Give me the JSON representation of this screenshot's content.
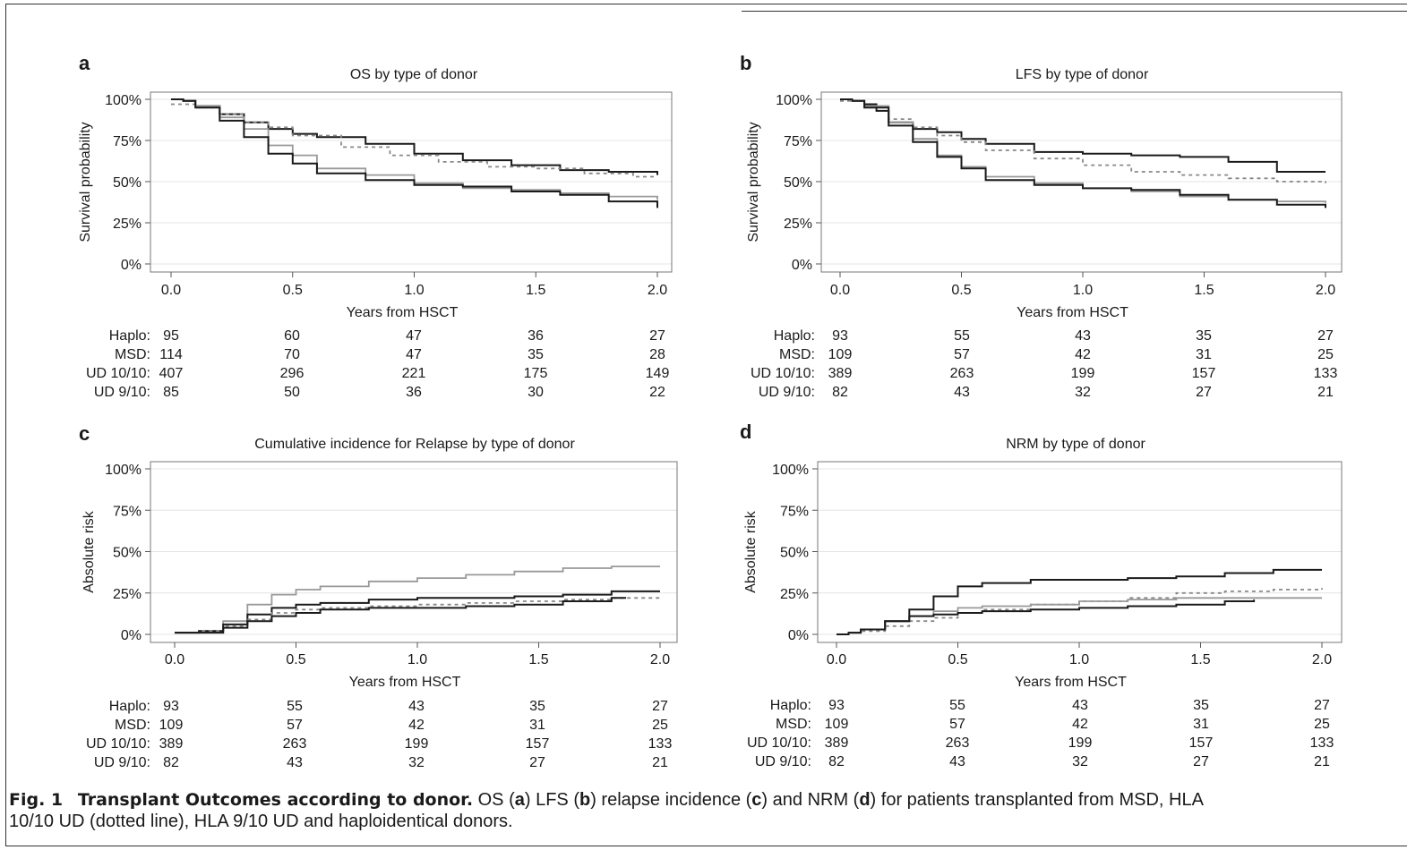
{
  "caption": {
    "fig_label": "Fig. 1",
    "bold_title": "Transplant Outcomes according to donor.",
    "parts": [
      {
        "text": " OS (",
        "bold": false
      },
      {
        "text": "a",
        "bold": true
      },
      {
        "text": ") LFS (",
        "bold": false
      },
      {
        "text": "b",
        "bold": true
      },
      {
        "text": ") relapse incidence (",
        "bold": false
      },
      {
        "text": "c",
        "bold": true
      },
      {
        "text": ") and NRM (",
        "bold": false
      },
      {
        "text": "d",
        "bold": true
      },
      {
        "text": ") for patients transplanted from MSD, HLA",
        "bold": false
      }
    ],
    "line2": "10/10 UD (dotted line), HLA 9/10 UD and haploidentical donors."
  },
  "chart_data": [
    {
      "panel": "a",
      "type": "line",
      "title": "OS by type of donor",
      "xlabel": "Years from HSCT",
      "ylabel": "Survival probability",
      "xlim": [
        0,
        2
      ],
      "ylim": [
        0,
        1
      ],
      "x_ticks": [
        "0.0",
        "0.5",
        "1.0",
        "1.5",
        "2.0"
      ],
      "y_ticks": [
        "0%",
        "25%",
        "50%",
        "75%",
        "100%"
      ],
      "grid": true,
      "series": [
        {
          "color": "#1a1a1a",
          "style": "solid",
          "x": [
            0,
            0.05,
            0.1,
            0.2,
            0.3,
            0.4,
            0.5,
            0.6,
            0.8,
            1.0,
            1.2,
            1.4,
            1.6,
            1.8,
            2.0
          ],
          "y": [
            1,
            0.99,
            0.96,
            0.91,
            0.86,
            0.82,
            0.79,
            0.77,
            0.73,
            0.67,
            0.63,
            0.6,
            0.57,
            0.56,
            0.54
          ]
        },
        {
          "color": "#888888",
          "style": "dashed",
          "x": [
            0,
            0.05,
            0.1,
            0.2,
            0.3,
            0.4,
            0.5,
            0.7,
            0.9,
            1.1,
            1.3,
            1.5,
            1.7,
            1.9,
            2.0
          ],
          "y": [
            0.97,
            0.97,
            0.95,
            0.91,
            0.86,
            0.83,
            0.78,
            0.71,
            0.66,
            0.62,
            0.59,
            0.58,
            0.55,
            0.53,
            0.53
          ]
        },
        {
          "color": "#999999",
          "style": "solid",
          "x": [
            0,
            0.05,
            0.1,
            0.2,
            0.3,
            0.4,
            0.5,
            0.6,
            0.8,
            1.0,
            1.2,
            1.4,
            1.6,
            1.8,
            2.0
          ],
          "y": [
            1,
            0.99,
            0.96,
            0.89,
            0.82,
            0.72,
            0.66,
            0.58,
            0.54,
            0.49,
            0.46,
            0.45,
            0.43,
            0.41,
            0.39
          ]
        },
        {
          "color": "#1a1a1a",
          "style": "solid",
          "x": [
            0,
            0.05,
            0.1,
            0.2,
            0.3,
            0.4,
            0.5,
            0.6,
            0.8,
            1.0,
            1.2,
            1.4,
            1.6,
            1.8,
            2.0
          ],
          "y": [
            1,
            0.99,
            0.95,
            0.87,
            0.77,
            0.67,
            0.61,
            0.55,
            0.51,
            0.48,
            0.47,
            0.44,
            0.42,
            0.38,
            0.34
          ]
        }
      ],
      "risk_table": {
        "rows": [
          {
            "label": "Haplo:",
            "values": [
              "95",
              "60",
              "47",
              "36",
              "27"
            ]
          },
          {
            "label": "MSD:",
            "values": [
              "114",
              "70",
              "47",
              "35",
              "28"
            ]
          },
          {
            "label": "UD 10/10:",
            "values": [
              "407",
              "296",
              "221",
              "175",
              "149"
            ]
          },
          {
            "label": "UD 9/10:",
            "values": [
              "85",
              "50",
              "36",
              "30",
              "22"
            ]
          }
        ]
      }
    },
    {
      "panel": "b",
      "type": "line",
      "title": "LFS by type of donor",
      "xlabel": "Years from HSCT",
      "ylabel": "Survival probability",
      "xlim": [
        0,
        2
      ],
      "ylim": [
        0,
        1
      ],
      "x_ticks": [
        "0.0",
        "0.5",
        "1.0",
        "1.5",
        "2.0"
      ],
      "y_ticks": [
        "0%",
        "25%",
        "50%",
        "75%",
        "100%"
      ],
      "grid": true,
      "series": [
        {
          "color": "#1a1a1a",
          "style": "solid",
          "x": [
            0,
            0.05,
            0.1,
            0.15,
            0.2,
            0.3,
            0.4,
            0.5,
            0.6,
            0.8,
            1.0,
            1.2,
            1.4,
            1.6,
            1.8,
            2.0
          ],
          "y": [
            1,
            0.99,
            0.97,
            0.93,
            0.86,
            0.82,
            0.8,
            0.76,
            0.73,
            0.68,
            0.67,
            0.66,
            0.65,
            0.62,
            0.56,
            0.56
          ]
        },
        {
          "color": "#888888",
          "style": "dashed",
          "x": [
            0,
            0.05,
            0.1,
            0.2,
            0.3,
            0.4,
            0.5,
            0.6,
            0.8,
            1.0,
            1.2,
            1.4,
            1.6,
            1.8,
            2.0
          ],
          "y": [
            0.99,
            0.99,
            0.96,
            0.88,
            0.83,
            0.78,
            0.74,
            0.69,
            0.64,
            0.6,
            0.56,
            0.54,
            0.52,
            0.5,
            0.49
          ]
        },
        {
          "color": "#999999",
          "style": "solid",
          "x": [
            0,
            0.05,
            0.1,
            0.2,
            0.3,
            0.4,
            0.5,
            0.6,
            0.8,
            1.0,
            1.2,
            1.4,
            1.6,
            1.8,
            2.0
          ],
          "y": [
            1,
            0.99,
            0.96,
            0.86,
            0.76,
            0.66,
            0.59,
            0.53,
            0.49,
            0.46,
            0.44,
            0.41,
            0.39,
            0.38,
            0.37
          ]
        },
        {
          "color": "#1a1a1a",
          "style": "solid",
          "x": [
            0,
            0.05,
            0.1,
            0.2,
            0.3,
            0.4,
            0.5,
            0.6,
            0.8,
            1.0,
            1.2,
            1.4,
            1.6,
            1.8,
            2.0
          ],
          "y": [
            1,
            0.99,
            0.95,
            0.84,
            0.74,
            0.65,
            0.58,
            0.51,
            0.48,
            0.46,
            0.45,
            0.42,
            0.39,
            0.36,
            0.34
          ]
        }
      ],
      "risk_table": {
        "rows": [
          {
            "label": "Haplo:",
            "values": [
              "93",
              "55",
              "43",
              "35",
              "27"
            ]
          },
          {
            "label": "MSD:",
            "values": [
              "109",
              "57",
              "42",
              "31",
              "25"
            ]
          },
          {
            "label": "UD 10/10:",
            "values": [
              "389",
              "263",
              "199",
              "157",
              "133"
            ]
          },
          {
            "label": "UD 9/10:",
            "values": [
              "82",
              "43",
              "32",
              "27",
              "21"
            ]
          }
        ]
      }
    },
    {
      "panel": "c",
      "type": "line",
      "title": "Cumulative incidence for Relapse by type of donor",
      "xlabel": "Years from HSCT",
      "ylabel": "Absolute risk",
      "xlim": [
        0,
        2
      ],
      "ylim": [
        0,
        1
      ],
      "x_ticks": [
        "0.0",
        "0.5",
        "1.0",
        "1.5",
        "2.0"
      ],
      "y_ticks": [
        "0%",
        "25%",
        "50%",
        "75%",
        "100%"
      ],
      "grid": true,
      "series": [
        {
          "color": "#999999",
          "style": "solid",
          "x": [
            0,
            0.05,
            0.1,
            0.2,
            0.3,
            0.4,
            0.5,
            0.6,
            0.8,
            1.0,
            1.2,
            1.4,
            1.6,
            1.8,
            2.0
          ],
          "y": [
            0.01,
            0.01,
            0.02,
            0.08,
            0.18,
            0.24,
            0.27,
            0.29,
            0.32,
            0.34,
            0.36,
            0.38,
            0.4,
            0.41,
            0.41
          ]
        },
        {
          "color": "#1a1a1a",
          "style": "solid",
          "x": [
            0,
            0.05,
            0.1,
            0.2,
            0.3,
            0.4,
            0.5,
            0.6,
            0.8,
            1.0,
            1.2,
            1.4,
            1.6,
            1.8,
            2.0
          ],
          "y": [
            0.01,
            0.01,
            0.02,
            0.06,
            0.12,
            0.16,
            0.18,
            0.19,
            0.21,
            0.22,
            0.22,
            0.23,
            0.24,
            0.26,
            0.26
          ]
        },
        {
          "color": "#888888",
          "style": "dashed",
          "x": [
            0,
            0.05,
            0.1,
            0.2,
            0.3,
            0.4,
            0.5,
            0.6,
            0.8,
            1.0,
            1.2,
            1.4,
            1.6,
            1.8,
            2.0
          ],
          "y": [
            0.01,
            0.01,
            0.02,
            0.05,
            0.09,
            0.13,
            0.15,
            0.16,
            0.17,
            0.18,
            0.19,
            0.2,
            0.21,
            0.22,
            0.22
          ]
        },
        {
          "color": "#1a1a1a",
          "style": "solid",
          "x": [
            0,
            0.05,
            0.1,
            0.2,
            0.3,
            0.4,
            0.5,
            0.6,
            0.8,
            1.0,
            1.2,
            1.4,
            1.6,
            1.8,
            1.86
          ],
          "y": [
            0.01,
            0.01,
            0.01,
            0.04,
            0.08,
            0.11,
            0.13,
            0.15,
            0.16,
            0.16,
            0.17,
            0.18,
            0.2,
            0.22,
            0.22
          ]
        }
      ],
      "risk_table": {
        "rows": [
          {
            "label": "Haplo:",
            "values": [
              "93",
              "55",
              "43",
              "35",
              "27"
            ]
          },
          {
            "label": "MSD:",
            "values": [
              "109",
              "57",
              "42",
              "31",
              "25"
            ]
          },
          {
            "label": "UD 10/10:",
            "values": [
              "389",
              "263",
              "199",
              "157",
              "133"
            ]
          },
          {
            "label": "UD 9/10:",
            "values": [
              "82",
              "43",
              "32",
              "27",
              "21"
            ]
          }
        ]
      }
    },
    {
      "panel": "d",
      "type": "line",
      "title": "NRM by type of donor",
      "xlabel": "Years from HSCT",
      "ylabel": "Absolute risk",
      "xlim": [
        0,
        2
      ],
      "ylim": [
        0,
        1
      ],
      "x_ticks": [
        "0.0",
        "0.5",
        "1.0",
        "1.5",
        "2.0"
      ],
      "y_ticks": [
        "0%",
        "25%",
        "50%",
        "75%",
        "100%"
      ],
      "grid": true,
      "series": [
        {
          "color": "#1a1a1a",
          "style": "solid",
          "x": [
            0,
            0.05,
            0.1,
            0.2,
            0.3,
            0.4,
            0.5,
            0.6,
            0.8,
            1.0,
            1.2,
            1.4,
            1.6,
            1.8,
            2.0
          ],
          "y": [
            0,
            0.01,
            0.03,
            0.08,
            0.15,
            0.23,
            0.29,
            0.31,
            0.33,
            0.33,
            0.34,
            0.35,
            0.37,
            0.39,
            0.39
          ]
        },
        {
          "color": "#888888",
          "style": "dashed",
          "x": [
            0,
            0.05,
            0.1,
            0.2,
            0.3,
            0.4,
            0.5,
            0.6,
            0.8,
            1.0,
            1.2,
            1.4,
            1.6,
            1.8,
            2.0
          ],
          "y": [
            0,
            0.01,
            0.02,
            0.05,
            0.08,
            0.1,
            0.13,
            0.15,
            0.18,
            0.2,
            0.22,
            0.25,
            0.26,
            0.27,
            0.28
          ]
        },
        {
          "color": "#999999",
          "style": "solid",
          "x": [
            0,
            0.05,
            0.1,
            0.2,
            0.3,
            0.4,
            0.5,
            0.6,
            0.8,
            1.0,
            1.2,
            1.4,
            1.6,
            1.8,
            2.0
          ],
          "y": [
            0,
            0.01,
            0.03,
            0.08,
            0.11,
            0.14,
            0.16,
            0.17,
            0.18,
            0.2,
            0.21,
            0.22,
            0.22,
            0.22,
            0.22
          ]
        },
        {
          "color": "#1a1a1a",
          "style": "solid",
          "x": [
            0,
            0.05,
            0.1,
            0.2,
            0.3,
            0.4,
            0.5,
            0.6,
            0.8,
            1.0,
            1.2,
            1.4,
            1.6,
            1.72
          ],
          "y": [
            0,
            0.01,
            0.03,
            0.08,
            0.11,
            0.12,
            0.13,
            0.14,
            0.15,
            0.16,
            0.17,
            0.18,
            0.2,
            0.21
          ]
        }
      ],
      "risk_table": {
        "rows": [
          {
            "label": "Haplo:",
            "values": [
              "93",
              "55",
              "43",
              "35",
              "27"
            ]
          },
          {
            "label": "MSD:",
            "values": [
              "109",
              "57",
              "42",
              "31",
              "25"
            ]
          },
          {
            "label": "UD 10/10:",
            "values": [
              "389",
              "263",
              "199",
              "157",
              "133"
            ]
          },
          {
            "label": "UD 9/10:",
            "values": [
              "82",
              "43",
              "32",
              "27",
              "21"
            ]
          }
        ]
      }
    }
  ]
}
